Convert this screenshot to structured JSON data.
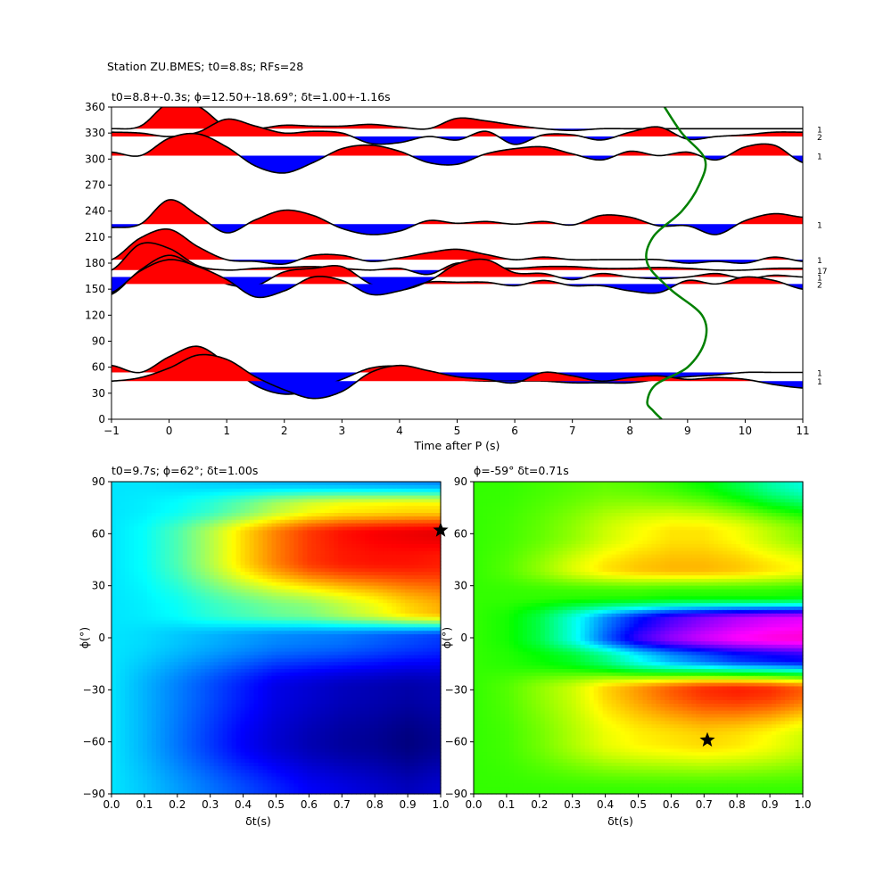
{
  "figure": {
    "suptitle": "Station ZU.BMES; t0=8.8s; RFs=28"
  },
  "chart_data": [
    {
      "type": "line",
      "panel": "top",
      "title": "t0=8.8+-0.3s; ϕ=12.50+-18.69°; δt=1.00+-1.16s",
      "xlabel": "Time after P (s)",
      "ylabel": "",
      "xlim": [
        -1,
        11
      ],
      "ylim": [
        0,
        360
      ],
      "xticks": [
        -1,
        0,
        1,
        2,
        3,
        4,
        5,
        6,
        7,
        8,
        9,
        10,
        11
      ],
      "yticks": [
        0,
        30,
        60,
        90,
        120,
        150,
        180,
        210,
        240,
        270,
        300,
        330,
        360
      ],
      "fill_positive_color": "#ff0000",
      "fill_negative_color": "#0000ff",
      "curve_color": "#008000",
      "traces": [
        {
          "baseline": 335,
          "count": "1",
          "values": [
            0,
            3,
            30,
            26,
            2,
            0,
            4,
            3,
            3,
            5,
            2,
            0,
            12,
            9,
            4,
            0,
            -2,
            0
          ],
          "values_step_s": 0.5,
          "values_start_s": -1
        },
        {
          "baseline": 326,
          "count": "2",
          "values": [
            5,
            4,
            0,
            5,
            20,
            12,
            4,
            6,
            4,
            -8,
            -7,
            0,
            -4,
            6,
            -9,
            2,
            2,
            -4,
            5,
            11,
            -3,
            0,
            2,
            5,
            5
          ],
          "values_step_s": 0.5,
          "values_start_s": -1
        },
        {
          "baseline": 304,
          "count": "1",
          "values": [
            4,
            0,
            20,
            25,
            10,
            -12,
            -20,
            -8,
            8,
            12,
            5,
            -8,
            -10,
            2,
            8,
            10,
            2,
            -5,
            5,
            0,
            4,
            -5,
            10,
            12,
            -8
          ],
          "values_step_s": 0.5,
          "values_start_s": -1
        },
        {
          "baseline": 225,
          "count": "1",
          "values": [
            -4,
            0,
            28,
            10,
            -10,
            5,
            16,
            10,
            -5,
            -12,
            -8,
            4,
            1,
            3,
            0,
            3,
            -1,
            10,
            8,
            -2,
            -2,
            -12,
            4,
            12,
            8
          ],
          "values_step_s": 0.5,
          "values_start_s": -1
        },
        {
          "baseline": 184,
          "count": "1",
          "values": [
            0,
            25,
            35,
            15,
            0,
            -2,
            -5,
            5,
            5,
            -2,
            2,
            8,
            12,
            6,
            0,
            3,
            0,
            0,
            0,
            0,
            -4,
            -2,
            -4,
            3,
            -2
          ],
          "values_step_s": 0.5,
          "values_start_s": -1
        },
        {
          "baseline": 172,
          "count": "17",
          "values": [
            0,
            30,
            25,
            5,
            0,
            2,
            3,
            4,
            2,
            0,
            2,
            -5,
            8,
            4,
            2,
            4,
            4,
            2,
            2,
            3,
            2,
            0,
            0,
            2,
            2
          ],
          "values_step_s": 0.5,
          "values_start_s": -1
        },
        {
          "baseline": 164,
          "count": "1",
          "values": [
            -20,
            8,
            25,
            10,
            -8,
            -10,
            6,
            10,
            12,
            -8,
            -15,
            -5,
            15,
            20,
            5,
            4,
            -3,
            4,
            0,
            -2,
            0,
            4,
            -2,
            2,
            0
          ],
          "values_step_s": 0.5,
          "values_start_s": -1
        },
        {
          "baseline": 156,
          "count": "2",
          "values": [
            -10,
            15,
            28,
            20,
            5,
            -15,
            -8,
            8,
            4,
            -12,
            -8,
            2,
            2,
            2,
            -2,
            4,
            -2,
            -2,
            -8,
            -10,
            4,
            0,
            8,
            4,
            -6
          ],
          "values_step_s": 0.5,
          "values_start_s": -1
        },
        {
          "baseline": 54,
          "count": "1",
          "values": [
            8,
            0,
            18,
            30,
            10,
            -15,
            -25,
            -20,
            -8,
            5,
            7,
            0,
            -8,
            -10,
            -10,
            -10,
            -12,
            -12,
            -12,
            -8,
            -5,
            -3,
            0,
            0,
            0
          ],
          "values_step_s": 0.5,
          "values_start_s": -1
        },
        {
          "baseline": 44,
          "count": "1",
          "values": [
            0,
            4,
            15,
            30,
            25,
            5,
            -10,
            -20,
            -12,
            10,
            18,
            12,
            5,
            2,
            -2,
            10,
            6,
            0,
            4,
            6,
            2,
            4,
            2,
            -4,
            -8
          ],
          "values_step_s": 0.5,
          "values_start_s": -1
        }
      ],
      "curve": {
        "x": [
          8.6,
          8.9,
          9.3,
          9.2,
          8.9,
          8.4,
          8.3,
          8.7,
          9.25,
          9.3,
          9.0,
          8.45,
          8.3,
          8.4,
          8.55
        ],
        "y": [
          360,
          330,
          300,
          270,
          240,
          210,
          180,
          150,
          120,
          90,
          60,
          40,
          20,
          10,
          0
        ]
      }
    },
    {
      "type": "heatmap",
      "panel": "bottom-left",
      "title": "t0=9.7s; ϕ=62°; δt=1.00s",
      "xlabel": "δt(s)",
      "ylabel": "ϕ(°)",
      "xlim": [
        0,
        1
      ],
      "ylim": [
        -90,
        90
      ],
      "xticks": [
        0.0,
        0.1,
        0.2,
        0.3,
        0.4,
        0.5,
        0.6,
        0.7,
        0.8,
        0.9,
        1.0
      ],
      "yticks": [
        -90,
        -60,
        -30,
        0,
        30,
        60,
        90
      ],
      "colormap": "jet",
      "max_marker": {
        "x": 1.0,
        "y": 62
      },
      "grid_values": [
        [
          0.35,
          0.35,
          0.34,
          0.33,
          0.32,
          0.31,
          0.3,
          0.29,
          0.28,
          0.27,
          0.26
        ],
        [
          0.35,
          0.36,
          0.38,
          0.42,
          0.48,
          0.55,
          0.6,
          0.63,
          0.64,
          0.65,
          0.65
        ],
        [
          0.35,
          0.38,
          0.45,
          0.55,
          0.66,
          0.75,
          0.82,
          0.86,
          0.88,
          0.89,
          0.9
        ],
        [
          0.35,
          0.38,
          0.45,
          0.55,
          0.66,
          0.75,
          0.82,
          0.85,
          0.86,
          0.86,
          0.85
        ],
        [
          0.35,
          0.36,
          0.38,
          0.42,
          0.45,
          0.48,
          0.5,
          0.55,
          0.6,
          0.66,
          0.7
        ],
        [
          0.35,
          0.34,
          0.32,
          0.3,
          0.28,
          0.26,
          0.25,
          0.24,
          0.22,
          0.2,
          0.18
        ],
        [
          0.35,
          0.3,
          0.25,
          0.2,
          0.15,
          0.1,
          0.08,
          0.06,
          0.05,
          0.04,
          0.05
        ],
        [
          0.35,
          0.3,
          0.24,
          0.18,
          0.12,
          0.08,
          0.05,
          0.03,
          0.02,
          0.0,
          0.02
        ],
        [
          0.35,
          0.32,
          0.28,
          0.24,
          0.2,
          0.16,
          0.12,
          0.1,
          0.08,
          0.06,
          0.08
        ]
      ],
      "grid_phi": [
        90,
        75,
        60,
        45,
        15,
        0,
        -30,
        -60,
        -90
      ]
    },
    {
      "type": "heatmap",
      "panel": "bottom-right",
      "title": "ϕ=-59° δt=0.71s",
      "xlabel": "δt(s)",
      "ylabel": "ϕ(°)",
      "xlim": [
        0,
        1
      ],
      "ylim": [
        -90,
        90
      ],
      "xticks": [
        0.0,
        0.1,
        0.2,
        0.3,
        0.4,
        0.5,
        0.6,
        0.7,
        0.8,
        0.9,
        1.0
      ],
      "yticks": [
        -90,
        -60,
        -30,
        0,
        30,
        60,
        90
      ],
      "colormap": "hsv",
      "max_marker": {
        "x": 0.71,
        "y": -59
      },
      "grid_values": [
        [
          0.3,
          0.3,
          0.29,
          0.28,
          0.27,
          0.28,
          0.3,
          0.33,
          0.38,
          0.44,
          0.48
        ],
        [
          0.3,
          0.29,
          0.27,
          0.24,
          0.2,
          0.17,
          0.15,
          0.15,
          0.17,
          0.21,
          0.25
        ],
        [
          0.3,
          0.28,
          0.24,
          0.19,
          0.15,
          0.13,
          0.12,
          0.12,
          0.13,
          0.15,
          0.17
        ],
        [
          0.3,
          0.3,
          0.3,
          0.3,
          0.3,
          0.3,
          0.31,
          0.31,
          0.31,
          0.31,
          0.32
        ],
        [
          0.3,
          0.32,
          0.38,
          0.48,
          0.58,
          0.66,
          0.72,
          0.76,
          0.79,
          0.81,
          0.82
        ],
        [
          0.3,
          0.32,
          0.38,
          0.48,
          0.6,
          0.7,
          0.76,
          0.8,
          0.83,
          0.85,
          0.86
        ],
        [
          0.3,
          0.31,
          0.33,
          0.36,
          0.42,
          0.5,
          0.56,
          0.6,
          0.64,
          0.66,
          0.68
        ],
        [
          0.3,
          0.28,
          0.24,
          0.2,
          0.14,
          0.1,
          0.06,
          0.03,
          0.02,
          0.03,
          0.06
        ],
        [
          0.3,
          0.29,
          0.26,
          0.22,
          0.18,
          0.16,
          0.15,
          0.14,
          0.15,
          0.17,
          0.2
        ],
        [
          0.3,
          0.3,
          0.3,
          0.3,
          0.3,
          0.3,
          0.3,
          0.3,
          0.3,
          0.3,
          0.3
        ]
      ],
      "grid_phi": [
        90,
        60,
        40,
        25,
        10,
        0,
        -12,
        -30,
        -59,
        -90
      ]
    }
  ]
}
